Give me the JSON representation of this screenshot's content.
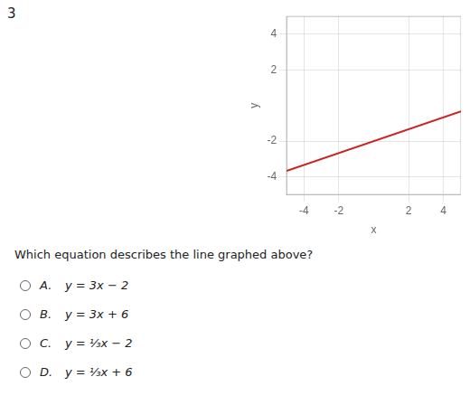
{
  "chart_data": {
    "type": "line",
    "x": [
      -5,
      5
    ],
    "values": [
      -3.666665,
      -0.333335
    ],
    "color": "#cc2222",
    "xlim": [
      -5,
      5
    ],
    "ylim": [
      -5,
      5
    ],
    "xticks": [
      -4,
      -2,
      2,
      4
    ],
    "yticks": [
      -4,
      -2,
      2,
      4
    ],
    "x_label": "x",
    "y_label": "y",
    "grid": true,
    "annotations": [
      "3",
      "Which equation describes the line graphed above?",
      "A.",
      "y = 3x − 2",
      "B.",
      "y = 3x + 6",
      "C.",
      "y = ¹⁄₃x − 2",
      "D.",
      "y = ¹⁄₃x + 6"
    ]
  }
}
